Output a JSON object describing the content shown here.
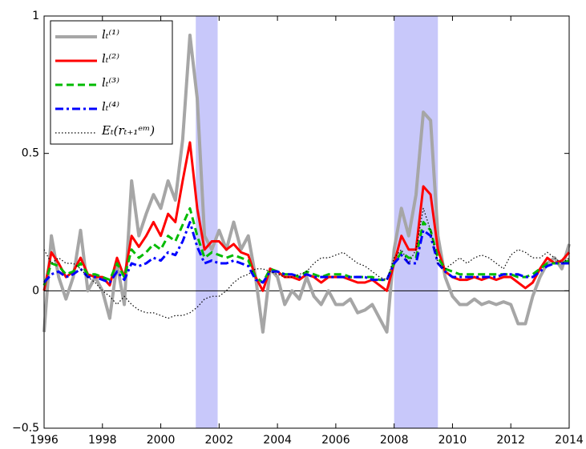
{
  "chart_data": {
    "type": "line",
    "x": [
      1996,
      1996.25,
      1996.5,
      1996.75,
      1997,
      1997.25,
      1997.5,
      1997.75,
      1998,
      1998.25,
      1998.5,
      1998.75,
      1999,
      1999.25,
      1999.5,
      1999.75,
      2000,
      2000.25,
      2000.5,
      2000.75,
      2001,
      2001.25,
      2001.5,
      2001.75,
      2002,
      2002.25,
      2002.5,
      2002.75,
      2003,
      2003.25,
      2003.5,
      2003.75,
      2004,
      2004.25,
      2004.5,
      2004.75,
      2005,
      2005.25,
      2005.5,
      2005.75,
      2006,
      2006.25,
      2006.5,
      2006.75,
      2007,
      2007.25,
      2007.5,
      2007.75,
      2008,
      2008.25,
      2008.5,
      2008.75,
      2009,
      2009.25,
      2009.5,
      2009.75,
      2010,
      2010.25,
      2010.5,
      2010.75,
      2011,
      2011.25,
      2011.5,
      2011.75,
      2012,
      2012.25,
      2012.5,
      2012.75,
      2013,
      2013.25,
      2013.5,
      2013.75,
      2014
    ],
    "series": [
      {
        "name": "lₜ⁽¹⁾",
        "color": "#a6a6a6",
        "style": "solid",
        "values": [
          -0.15,
          0.2,
          0.05,
          -0.03,
          0.05,
          0.22,
          0.0,
          0.05,
          0.0,
          -0.1,
          0.1,
          -0.05,
          0.4,
          0.2,
          0.28,
          0.35,
          0.3,
          0.4,
          0.33,
          0.55,
          0.93,
          0.7,
          0.2,
          0.15,
          0.22,
          0.15,
          0.25,
          0.15,
          0.2,
          0.05,
          -0.15,
          0.08,
          0.05,
          -0.05,
          0.0,
          -0.03,
          0.05,
          -0.02,
          -0.05,
          0.0,
          -0.05,
          -0.05,
          -0.03,
          -0.08,
          -0.07,
          -0.05,
          -0.1,
          -0.15,
          0.15,
          0.3,
          0.2,
          0.35,
          0.65,
          0.62,
          0.2,
          0.05,
          -0.02,
          -0.05,
          -0.05,
          -0.03,
          -0.05,
          -0.04,
          -0.05,
          -0.04,
          -0.05,
          -0.12,
          -0.12,
          -0.02,
          0.05,
          0.1,
          0.12,
          0.08,
          0.17
        ]
      },
      {
        "name": "lₜ⁽²⁾",
        "color": "#ff0000",
        "style": "solid",
        "values": [
          0.0,
          0.14,
          0.1,
          0.05,
          0.07,
          0.12,
          0.06,
          0.05,
          0.05,
          0.02,
          0.12,
          0.05,
          0.2,
          0.16,
          0.2,
          0.25,
          0.2,
          0.28,
          0.25,
          0.4,
          0.54,
          0.3,
          0.15,
          0.18,
          0.18,
          0.15,
          0.17,
          0.14,
          0.13,
          0.05,
          0.0,
          0.08,
          0.07,
          0.05,
          0.05,
          0.04,
          0.06,
          0.05,
          0.03,
          0.05,
          0.05,
          0.05,
          0.04,
          0.03,
          0.03,
          0.04,
          0.02,
          0.0,
          0.1,
          0.2,
          0.15,
          0.15,
          0.38,
          0.35,
          0.15,
          0.07,
          0.05,
          0.04,
          0.04,
          0.05,
          0.04,
          0.05,
          0.04,
          0.05,
          0.05,
          0.03,
          0.01,
          0.03,
          0.08,
          0.12,
          0.1,
          0.11,
          0.14
        ]
      },
      {
        "name": "lₜ⁽³⁾",
        "color": "#00bb00",
        "style": "dashed",
        "values": [
          0.02,
          0.1,
          0.09,
          0.06,
          0.07,
          0.1,
          0.06,
          0.06,
          0.05,
          0.04,
          0.1,
          0.05,
          0.15,
          0.12,
          0.14,
          0.17,
          0.15,
          0.2,
          0.18,
          0.24,
          0.3,
          0.2,
          0.12,
          0.14,
          0.13,
          0.12,
          0.13,
          0.12,
          0.11,
          0.05,
          0.03,
          0.08,
          0.07,
          0.06,
          0.06,
          0.05,
          0.07,
          0.06,
          0.05,
          0.06,
          0.06,
          0.06,
          0.05,
          0.05,
          0.05,
          0.05,
          0.04,
          0.04,
          0.1,
          0.14,
          0.12,
          0.12,
          0.25,
          0.22,
          0.12,
          0.08,
          0.07,
          0.06,
          0.06,
          0.06,
          0.06,
          0.06,
          0.06,
          0.06,
          0.06,
          0.05,
          0.05,
          0.06,
          0.08,
          0.1,
          0.1,
          0.1,
          0.11
        ]
      },
      {
        "name": "lₜ⁽⁴⁾",
        "color": "#0000ff",
        "style": "dashdot",
        "values": [
          0.03,
          0.06,
          0.07,
          0.05,
          0.06,
          0.08,
          0.05,
          0.05,
          0.04,
          0.03,
          0.07,
          0.04,
          0.1,
          0.09,
          0.1,
          0.12,
          0.11,
          0.14,
          0.13,
          0.18,
          0.25,
          0.16,
          0.1,
          0.11,
          0.1,
          0.1,
          0.11,
          0.1,
          0.09,
          0.04,
          0.03,
          0.07,
          0.07,
          0.06,
          0.06,
          0.05,
          0.06,
          0.05,
          0.05,
          0.05,
          0.05,
          0.05,
          0.05,
          0.05,
          0.05,
          0.04,
          0.04,
          0.04,
          0.1,
          0.13,
          0.1,
          0.1,
          0.22,
          0.2,
          0.1,
          0.07,
          0.05,
          0.05,
          0.05,
          0.05,
          0.05,
          0.05,
          0.05,
          0.06,
          0.06,
          0.06,
          0.05,
          0.05,
          0.07,
          0.09,
          0.1,
          0.1,
          0.1
        ]
      },
      {
        "name": "Eₜ(rₜ₊₁ᵉᵐ)",
        "color": "#000000",
        "style": "dotted",
        "values": [
          0.15,
          0.1,
          0.12,
          0.1,
          0.1,
          0.08,
          0.05,
          0.03,
          0.0,
          -0.02,
          -0.05,
          -0.02,
          -0.05,
          -0.07,
          -0.08,
          -0.08,
          -0.09,
          -0.1,
          -0.09,
          -0.09,
          -0.08,
          -0.06,
          -0.03,
          -0.02,
          -0.02,
          0.0,
          0.03,
          0.05,
          0.06,
          0.08,
          0.08,
          0.07,
          0.06,
          0.05,
          0.05,
          0.06,
          0.07,
          0.1,
          0.12,
          0.12,
          0.13,
          0.14,
          0.12,
          0.1,
          0.09,
          0.07,
          0.05,
          0.04,
          0.12,
          0.15,
          0.1,
          0.15,
          0.3,
          0.22,
          0.1,
          0.08,
          0.1,
          0.12,
          0.1,
          0.12,
          0.13,
          0.12,
          0.1,
          0.08,
          0.13,
          0.15,
          0.14,
          0.12,
          0.12,
          0.14,
          0.12,
          0.1,
          0.12
        ]
      }
    ],
    "shaded_regions": [
      {
        "start": 2001.2,
        "end": 2001.95
      },
      {
        "start": 2008,
        "end": 2009.5
      }
    ],
    "shade_color": "#c8c8fa",
    "reference_line": 0,
    "xlim": [
      1996,
      2014
    ],
    "xticks": [
      1996,
      1998,
      2000,
      2002,
      2004,
      2006,
      2008,
      2010,
      2012,
      2014
    ],
    "ylim": [
      -0.5,
      1
    ],
    "yticks": [
      {
        "value": -0.5,
        "label": "−0.5"
      },
      0,
      0.5,
      1
    ],
    "legend": "upper-left"
  }
}
